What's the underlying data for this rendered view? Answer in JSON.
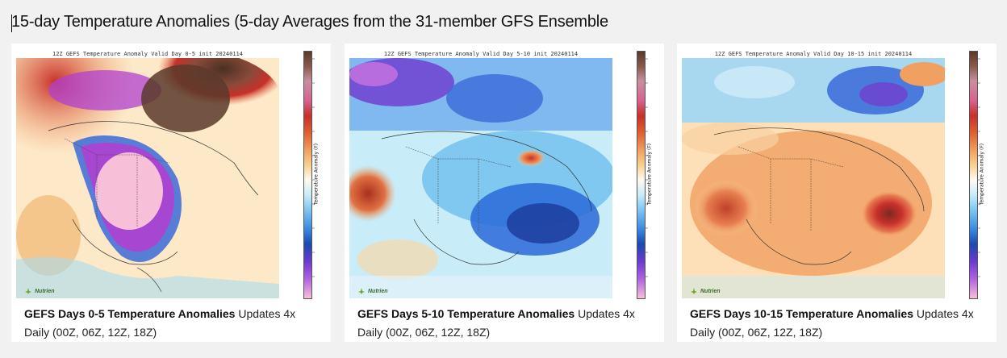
{
  "page": {
    "title": "15-day Temperature Anomalies (5-day Averages from the 31-member GFS Ensemble"
  },
  "cards": [
    {
      "map_header": "12Z GEFS Temperature Anomaly Valid Day 0-5 init 20240114",
      "colorbar_label": "Temperature Anomaly (F)",
      "logo_text": "Nutrien",
      "caption_bold": "GEFS Days 0-5 Temperature Anomalies",
      "caption_text": " Updates 4x Daily (00Z, 06Z, 12Z, 18Z)"
    },
    {
      "map_header": "12Z GEFS Temperature Anomaly Valid Day 5-10 init 20240114",
      "colorbar_label": "Temperature Anomaly (F)",
      "logo_text": "Nutrien",
      "caption_bold": "GEFS Days 5-10 Temperature Anomalies",
      "caption_text": " Updates 4x Daily (00Z, 06Z, 12Z, 18Z)"
    },
    {
      "map_header": "12Z GEFS Temperature Anomaly Valid Day 10-15 init 20240114",
      "colorbar_label": "Temperature Anomaly (F)",
      "logo_text": "Nutrien",
      "caption_bold": "GEFS Days 10-15 Temperature Anomalies",
      "caption_text": " Updates 4x Daily (00Z, 06Z, 12Z, 18Z)"
    }
  ],
  "colors": {
    "warm_dark": "#5a3a2a",
    "warm": "#c8302a",
    "orange": "#f0a060",
    "neutral": "#fffaf0",
    "cool": "#80c8f0",
    "blue": "#2a6ad8",
    "purple": "#b040d0",
    "pink": "#f8c0d8"
  }
}
